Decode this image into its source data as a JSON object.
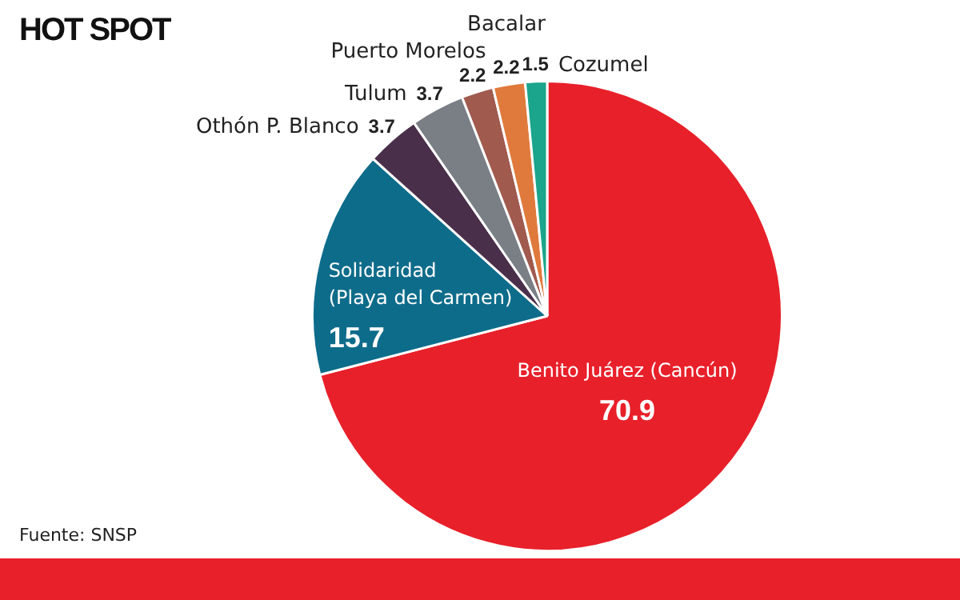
{
  "chart_data": {
    "type": "pie",
    "title": "HOT SPOT",
    "categories": [
      "Benito Juárez (Cancún)",
      "Solidaridad\n(Playa del Carmen)",
      "Othón P. Blanco",
      "Tulum",
      "Puerto Morelos",
      "Bacalar",
      "Cozumel"
    ],
    "values": [
      70.9,
      15.7,
      3.7,
      3.7,
      2.2,
      2.2,
      1.5
    ],
    "colors": [
      "#e8202a",
      "#0e6c8b",
      "#4a2f4a",
      "#7a7f86",
      "#a05a4e",
      "#e07a3c",
      "#1aa58c"
    ],
    "data_labels": true,
    "legend": false,
    "annotations": [
      "Fuente: SNSP"
    ]
  }
}
